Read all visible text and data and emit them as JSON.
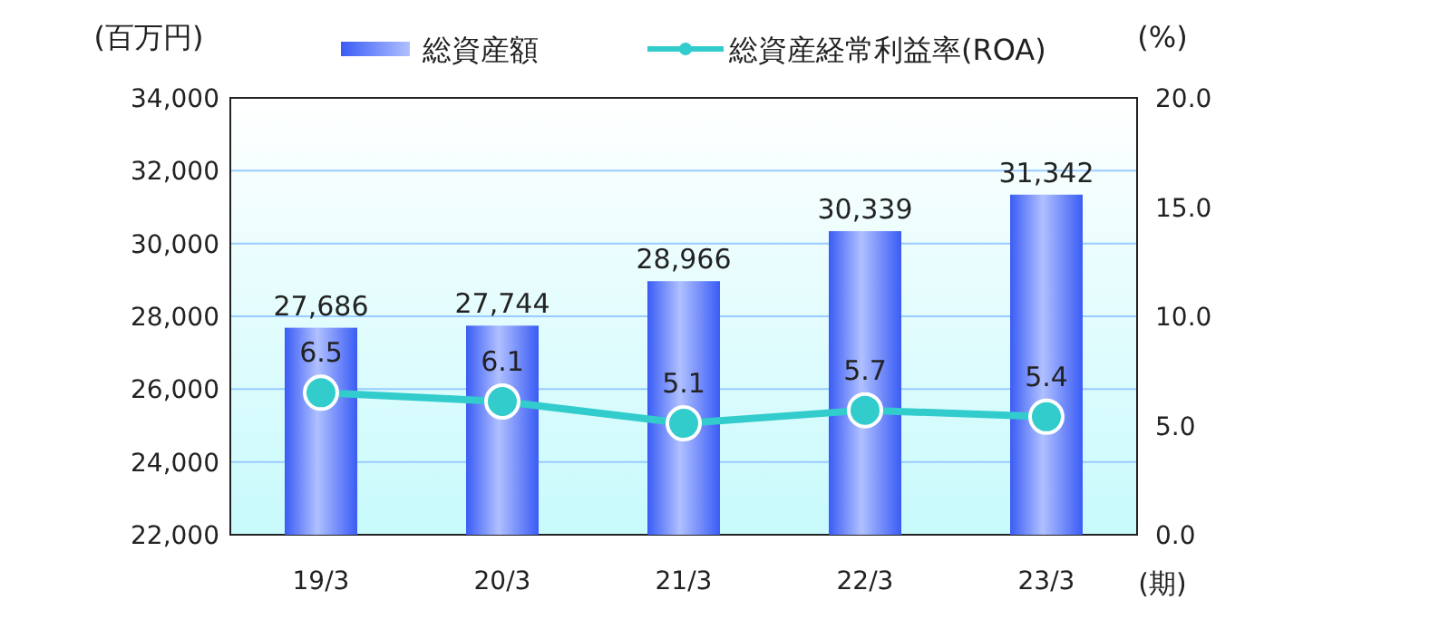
{
  "chart_data": {
    "type": "bar",
    "categories": [
      "19/3",
      "20/3",
      "21/3",
      "22/3",
      "23/3"
    ],
    "series": [
      {
        "name": "総資産額",
        "color": "#3a5cf5",
        "values": [
          27686,
          27744,
          28966,
          30339,
          31342
        ],
        "value_labels": [
          "27,686",
          "27,744",
          "28,966",
          "30,339",
          "31,342"
        ]
      },
      {
        "name": "総資産経常利益率(ROA)",
        "type": "line",
        "axis": "y2",
        "color": "#33cccc",
        "marker": "circle",
        "values": [
          6.5,
          6.1,
          5.1,
          5.7,
          5.4
        ],
        "value_labels": [
          "6.5",
          "6.1",
          "5.1",
          "5.7",
          "5.4"
        ]
      }
    ],
    "ylabel": "(百万円)",
    "y2label": "(%)",
    "xlabel": "(期)",
    "ylim": [
      22000,
      34000
    ],
    "yticks": [
      {
        "value": 22000,
        "label": "22,000"
      },
      {
        "value": 24000,
        "label": "24,000"
      },
      {
        "value": 26000,
        "label": "26,000"
      },
      {
        "value": 28000,
        "label": "28,000"
      },
      {
        "value": 30000,
        "label": "30,000"
      },
      {
        "value": 32000,
        "label": "32,000"
      },
      {
        "value": 34000,
        "label": "34,000"
      }
    ],
    "y2lim": [
      0,
      20
    ],
    "y2ticks": [
      {
        "value": 0,
        "label": "0.0"
      },
      {
        "value": 5,
        "label": "5.0"
      },
      {
        "value": 10,
        "label": "10.0"
      },
      {
        "value": 15,
        "label": "15.0"
      },
      {
        "value": 20,
        "label": "20.0"
      }
    ],
    "grid": "y",
    "legend": "top"
  }
}
